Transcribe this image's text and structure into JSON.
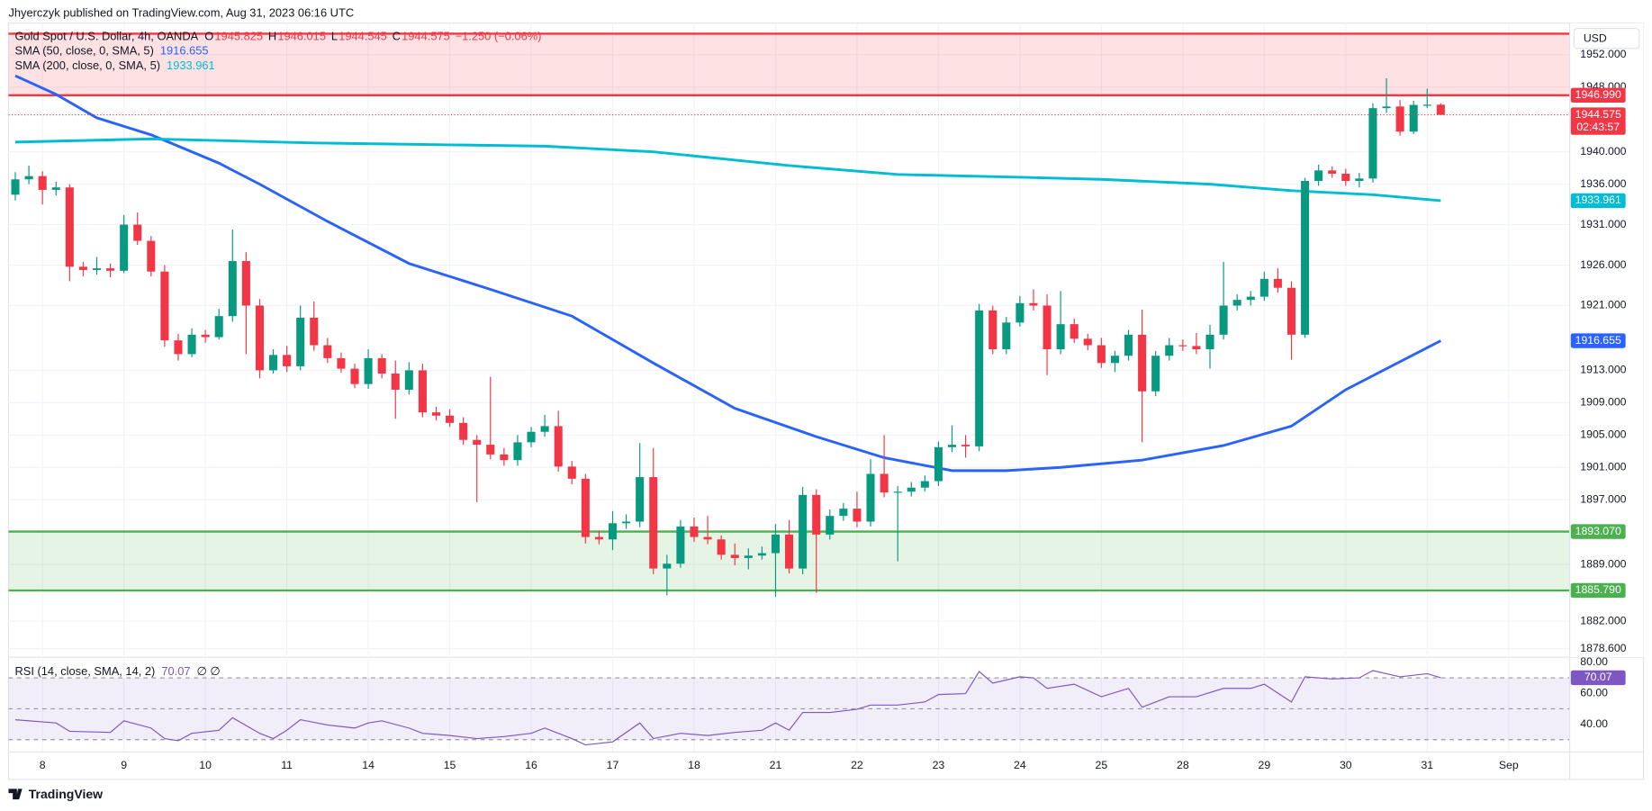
{
  "header": "Jhyerczyk published on TradingView.com, Aug 31, 2023 06:16 UTC",
  "footer": "TradingView",
  "chart_data": {
    "type": "candlestick",
    "title": "Gold Spot / U.S. Dollar, 4h, OANDA",
    "ohlc_labels": [
      "O",
      "H",
      "L",
      "C"
    ],
    "change": "−1.250 (−0.06%)",
    "currency": "USD",
    "countdown": "02:43:57",
    "up_color": "#089981",
    "down_color": "#f23645",
    "open": [
      1934.7,
      1936.6,
      1937.0,
      1935.3,
      1935.6,
      1925.8,
      1925.4,
      1925.6,
      1925.3,
      1931.0,
      1929.0,
      1925.2,
      1916.7,
      1915.0,
      1917.4,
      1917.1,
      1919.7,
      1926.5,
      1921.0,
      1913.0,
      1914.9,
      1913.5,
      1919.5,
      1916.1,
      1914.5,
      1913.2,
      1911.3,
      1914.5,
      1912.6,
      1910.6,
      1913.0,
      1907.8,
      1907.4,
      1906.5,
      1904.4,
      1903.8,
      1902.6,
      1901.9,
      1904.1,
      1905.4,
      1906.1,
      1901.1,
      1899.6,
      1892.4,
      1892.1,
      1894.1,
      1894.3,
      1899.8,
      1888.5,
      1889.1,
      1893.7,
      1892.4,
      1892.1,
      1890.2,
      1889.8,
      1890.1,
      1890.4,
      1892.7,
      1888.5,
      1897.6,
      1892.7,
      1895.0,
      1895.9,
      1894.3,
      1900.2,
      1897.9,
      1898.0,
      1898.5,
      1899.3,
      1903.5,
      1903.8,
      1903.6,
      1920.4,
      1915.6,
      1918.9,
      1921.3,
      1921.0,
      1915.6,
      1918.7,
      1916.9,
      1916.1,
      1913.9,
      1914.8,
      1917.4,
      1910.4,
      1914.8,
      1916.1,
      1916.0,
      1915.6,
      1917.4,
      1921.0,
      1921.7,
      1922.1,
      1924.3,
      1923.2,
      1917.4,
      1936.4,
      1937.7,
      1937.3,
      1936.4,
      1936.7,
      1945.4,
      1945.6,
      1942.5,
      1945.8,
      1945.825
    ],
    "high": [
      1937.5,
      1938.3,
      1937.6,
      1936.3,
      1936.0,
      1926.4,
      1927.0,
      1926.2,
      1932.2,
      1932.5,
      1929.6,
      1926.0,
      1917.5,
      1918.2,
      1918.0,
      1920.6,
      1930.4,
      1927.6,
      1921.8,
      1915.6,
      1916.0,
      1921.0,
      1921.5,
      1917.0,
      1915.2,
      1913.8,
      1915.6,
      1915.0,
      1914.2,
      1914.0,
      1913.8,
      1908.5,
      1908.2,
      1907.2,
      1905.0,
      1912.2,
      1903.4,
      1905.0,
      1906.0,
      1907.5,
      1908.0,
      1901.8,
      1900.2,
      1893.2,
      1895.6,
      1895.2,
      1904.0,
      1903.4,
      1890.2,
      1894.5,
      1894.8,
      1895.0,
      1892.6,
      1891.6,
      1891.0,
      1891.2,
      1894.0,
      1894.5,
      1898.6,
      1898.3,
      1895.8,
      1896.6,
      1898.0,
      1902.0,
      1905.0,
      1898.7,
      1899.2,
      1900.0,
      1904.2,
      1906.2,
      1905.0,
      1921.2,
      1921.0,
      1919.6,
      1922.2,
      1923.0,
      1922.4,
      1922.8,
      1919.4,
      1917.5,
      1917.0,
      1915.4,
      1918.0,
      1920.5,
      1915.4,
      1917.0,
      1916.8,
      1917.6,
      1918.6,
      1926.4,
      1922.4,
      1922.8,
      1925.2,
      1925.6,
      1924.0,
      1936.8,
      1938.4,
      1938.2,
      1937.9,
      1937.4,
      1946.0,
      1949.1,
      1946.4,
      1946.3,
      1947.8,
      1946.015
    ],
    "low": [
      1934.0,
      1936.0,
      1933.5,
      1934.6,
      1924.0,
      1924.6,
      1924.8,
      1924.5,
      1925.0,
      1928.5,
      1924.6,
      1915.9,
      1914.2,
      1914.6,
      1916.4,
      1916.8,
      1919.0,
      1915.0,
      1912.0,
      1912.6,
      1912.8,
      1913.0,
      1915.4,
      1913.9,
      1912.7,
      1910.8,
      1910.7,
      1912.0,
      1907.0,
      1910.0,
      1907.2,
      1906.8,
      1906.0,
      1903.8,
      1896.7,
      1902.0,
      1901.2,
      1901.2,
      1903.5,
      1904.8,
      1900.5,
      1898.9,
      1891.6,
      1891.5,
      1890.8,
      1893.4,
      1893.6,
      1887.8,
      1885.2,
      1888.6,
      1891.8,
      1891.5,
      1889.6,
      1888.9,
      1888.4,
      1889.6,
      1885.0,
      1887.9,
      1887.8,
      1885.5,
      1892.1,
      1894.4,
      1893.6,
      1893.7,
      1897.3,
      1889.4,
      1897.4,
      1898.0,
      1898.7,
      1902.9,
      1902.2,
      1903.0,
      1915.0,
      1915.0,
      1918.4,
      1920.4,
      1912.4,
      1915.0,
      1916.4,
      1915.5,
      1913.3,
      1912.8,
      1914.2,
      1904.1,
      1909.8,
      1914.2,
      1915.4,
      1915.0,
      1913.2,
      1916.8,
      1920.4,
      1921.0,
      1921.6,
      1922.6,
      1914.3,
      1917.0,
      1935.8,
      1936.8,
      1935.8,
      1935.6,
      1936.2,
      1944.8,
      1942.0,
      1942.2,
      1945.4,
      1944.545
    ],
    "close": [
      1936.6,
      1937.0,
      1935.3,
      1935.6,
      1925.8,
      1925.4,
      1925.6,
      1925.3,
      1931.0,
      1929.0,
      1925.2,
      1916.7,
      1915.0,
      1917.4,
      1917.1,
      1919.7,
      1926.5,
      1921.0,
      1913.0,
      1914.9,
      1913.5,
      1919.5,
      1916.1,
      1914.5,
      1913.2,
      1911.3,
      1914.5,
      1912.6,
      1910.6,
      1913.0,
      1907.8,
      1907.4,
      1906.5,
      1904.4,
      1903.8,
      1902.6,
      1901.9,
      1904.1,
      1905.4,
      1906.1,
      1901.1,
      1899.6,
      1892.4,
      1892.1,
      1894.1,
      1894.3,
      1899.8,
      1888.5,
      1889.1,
      1893.7,
      1892.4,
      1892.1,
      1890.2,
      1889.8,
      1890.1,
      1890.4,
      1892.7,
      1888.5,
      1897.6,
      1892.7,
      1895.0,
      1895.9,
      1894.3,
      1900.2,
      1897.9,
      1898.0,
      1898.5,
      1899.3,
      1903.5,
      1903.8,
      1903.6,
      1920.4,
      1915.6,
      1918.9,
      1921.3,
      1921.0,
      1915.6,
      1918.7,
      1916.9,
      1916.1,
      1913.9,
      1914.8,
      1917.4,
      1910.4,
      1914.8,
      1916.1,
      1916.0,
      1915.6,
      1917.4,
      1921.0,
      1921.7,
      1922.1,
      1924.3,
      1923.2,
      1917.4,
      1936.4,
      1937.7,
      1937.3,
      1936.4,
      1936.7,
      1945.4,
      1945.6,
      1942.5,
      1945.8,
      1945.825,
      1944.575
    ],
    "series": [
      {
        "name": "SMA (50, close, 0, SMA, 5)",
        "color": "#2962ff",
        "x": [
          0,
          3,
          6,
          10,
          15,
          18,
          23,
          29,
          35,
          41,
          47,
          53,
          59,
          64,
          69,
          73,
          77,
          83,
          89,
          94,
          98,
          105
        ],
        "values": [
          1949.4,
          1947.1,
          1944.2,
          1942.1,
          1938.6,
          1936.0,
          1931.4,
          1926.2,
          1923.0,
          1919.7,
          1913.9,
          1908.3,
          1904.8,
          1902.2,
          1900.6,
          1900.6,
          1901.0,
          1901.9,
          1903.7,
          1906.1,
          1910.6,
          1916.655
        ]
      },
      {
        "name": "SMA (200, close, 0, SMA, 5)",
        "color": "#00bcd4",
        "x": [
          0,
          10,
          22,
          39,
          47,
          57,
          65,
          73,
          80,
          88,
          94,
          100,
          105
        ],
        "values": [
          1941.2,
          1941.6,
          1941.1,
          1940.7,
          1940.0,
          1938.3,
          1937.2,
          1936.9,
          1936.6,
          1936.0,
          1935.2,
          1934.7,
          1933.961
        ]
      }
    ],
    "zones": [
      {
        "color": "#f23645",
        "fill": "rgba(242,54,69,0.15)",
        "top": 1954.6,
        "bottom": 1946.99,
        "bottom_label": "1946.990"
      },
      {
        "color": "#4caf50",
        "fill": "rgba(76,175,80,0.14)",
        "top": 1893.07,
        "top_label": "1893.070",
        "bottom": 1885.79,
        "bottom_label": "1885.790"
      }
    ],
    "xlim": [
      -0.5,
      114.5
    ],
    "xticks": [
      {
        "value": 2,
        "label": "8"
      },
      {
        "value": 8,
        "label": "9"
      },
      {
        "value": 14,
        "label": "10"
      },
      {
        "value": 20,
        "label": "11"
      },
      {
        "value": 26,
        "label": "14"
      },
      {
        "value": 32,
        "label": "15"
      },
      {
        "value": 38,
        "label": "16"
      },
      {
        "value": 44,
        "label": "17"
      },
      {
        "value": 50,
        "label": "18"
      },
      {
        "value": 56,
        "label": "21"
      },
      {
        "value": 62,
        "label": "22"
      },
      {
        "value": 68,
        "label": "23"
      },
      {
        "value": 74,
        "label": "24"
      },
      {
        "value": 80,
        "label": "25"
      },
      {
        "value": 86,
        "label": "28"
      },
      {
        "value": 92,
        "label": "29"
      },
      {
        "value": 98,
        "label": "30"
      },
      {
        "value": 104,
        "label": "31"
      },
      {
        "value": 110,
        "label": "Sep"
      }
    ],
    "ylim": [
      1877.8,
      1955.9
    ],
    "yticks": [
      {
        "value": 1952,
        "label": "1952.000"
      },
      {
        "value": 1948,
        "label": "1948.000"
      },
      {
        "value": 1940,
        "label": "1940.000"
      },
      {
        "value": 1936,
        "label": "1936.000"
      },
      {
        "value": 1931,
        "label": "1931.000"
      },
      {
        "value": 1926,
        "label": "1926.000"
      },
      {
        "value": 1921,
        "label": "1921.000"
      },
      {
        "value": 1913,
        "label": "1913.000"
      },
      {
        "value": 1909,
        "label": "1909.000"
      },
      {
        "value": 1905,
        "label": "1905.000"
      },
      {
        "value": 1901,
        "label": "1901.000"
      },
      {
        "value": 1897,
        "label": "1897.000"
      },
      {
        "value": 1889,
        "label": "1889.000"
      },
      {
        "value": 1882,
        "label": "1882.000"
      },
      {
        "value": 1878.6,
        "label": "1878.600"
      }
    ],
    "grid": true,
    "rsi": {
      "name": "RSI (14, close, SMA, 14, 2)",
      "extra": "∅ ∅",
      "color": "#7e57c2",
      "x": [
        0,
        3,
        4,
        7,
        8,
        10,
        11,
        12,
        13,
        15,
        16,
        18,
        19,
        20,
        21,
        23,
        25,
        26,
        27,
        29,
        30,
        32,
        34,
        36,
        38,
        39,
        41,
        42,
        44,
        46,
        47,
        49,
        51,
        53,
        55,
        56,
        57,
        58,
        60,
        62,
        63,
        65,
        67,
        68,
        70,
        71,
        72,
        74,
        75,
        76,
        78,
        80,
        82,
        83,
        85,
        87,
        89,
        91,
        92,
        94,
        95,
        97,
        99,
        100,
        102,
        104,
        105
      ],
      "values": [
        42.9,
        40.8,
        35.4,
        34.7,
        42.2,
        37.5,
        30.7,
        29.3,
        34.1,
        36.1,
        44.2,
        34.1,
        30.7,
        36.1,
        42.9,
        39.5,
        37.5,
        40.8,
        42.2,
        37.5,
        34.1,
        32.7,
        30.7,
        32.0,
        34.1,
        37.5,
        30.7,
        26.6,
        28.6,
        40.8,
        30.7,
        34.1,
        32.7,
        34.7,
        36.1,
        40.8,
        36.1,
        47.6,
        47.6,
        49.7,
        52.4,
        52.4,
        54.4,
        59.2,
        59.8,
        74.1,
        66.6,
        70.7,
        70.0,
        63.2,
        65.9,
        57.8,
        63.2,
        51.0,
        57.8,
        57.8,
        63.2,
        63.2,
        65.9,
        54.4,
        70.7,
        69.3,
        70.0,
        74.7,
        70.7,
        72.7,
        70.07
      ],
      "ylim": [
        22,
        82
      ],
      "yticks": [
        {
          "value": 80,
          "label": "80.00"
        },
        {
          "value": 60,
          "label": "60.00"
        },
        {
          "value": 40,
          "label": "40.00"
        }
      ],
      "bands": [
        70,
        50,
        30
      ]
    }
  }
}
